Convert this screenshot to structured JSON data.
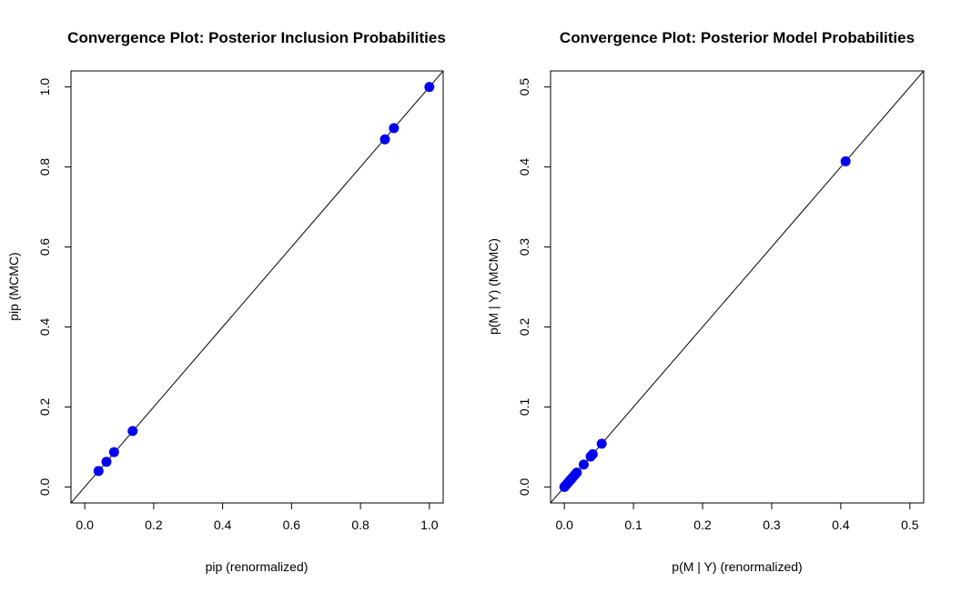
{
  "chart_data": [
    {
      "type": "scatter",
      "title": "Convergence Plot: Posterior Inclusion Probabilities",
      "xlabel": "pip (renormalized)",
      "ylabel": "pip (MCMC)",
      "xlim": [
        -0.04,
        1.04
      ],
      "ylim": [
        -0.04,
        1.04
      ],
      "xticks": [
        "0.0",
        "0.2",
        "0.4",
        "0.6",
        "0.8",
        "1.0"
      ],
      "yticks": [
        "0.0",
        "0.2",
        "0.4",
        "0.6",
        "0.8",
        "1.0"
      ],
      "reference_line": "y = x",
      "point_color": "#0000EE",
      "points": [
        {
          "x": 1.0,
          "y": 1.0
        },
        {
          "x": 0.897,
          "y": 0.897
        },
        {
          "x": 0.871,
          "y": 0.869
        },
        {
          "x": 0.139,
          "y": 0.14
        },
        {
          "x": 0.085,
          "y": 0.087
        },
        {
          "x": 0.063,
          "y": 0.063
        },
        {
          "x": 0.04,
          "y": 0.04
        }
      ]
    },
    {
      "type": "scatter",
      "title": "Convergence Plot: Posterior Model Probabilities",
      "xlabel": "p(M | Y) (renormalized)",
      "ylabel": "p(M | Y) (MCMC)",
      "xlim": [
        -0.02,
        0.52
      ],
      "ylim": [
        -0.02,
        0.52
      ],
      "xticks": [
        "0.0",
        "0.1",
        "0.2",
        "0.3",
        "0.4",
        "0.5"
      ],
      "yticks": [
        "0.0",
        "0.1",
        "0.2",
        "0.3",
        "0.4",
        "0.5"
      ],
      "reference_line": "y = x",
      "point_color": "#0000EE",
      "points": [
        {
          "x": 0.407,
          "y": 0.407
        },
        {
          "x": 0.054,
          "y": 0.054
        },
        {
          "x": 0.041,
          "y": 0.041
        },
        {
          "x": 0.038,
          "y": 0.038
        },
        {
          "x": 0.028,
          "y": 0.028
        },
        {
          "x": 0.018,
          "y": 0.018
        },
        {
          "x": 0.015,
          "y": 0.015
        },
        {
          "x": 0.012,
          "y": 0.012
        },
        {
          "x": 0.01,
          "y": 0.01
        },
        {
          "x": 0.008,
          "y": 0.008
        },
        {
          "x": 0.006,
          "y": 0.006
        },
        {
          "x": 0.004,
          "y": 0.004
        },
        {
          "x": 0.002,
          "y": 0.002
        },
        {
          "x": 0.001,
          "y": 0.001
        },
        {
          "x": 0.0,
          "y": 0.0
        }
      ]
    }
  ]
}
